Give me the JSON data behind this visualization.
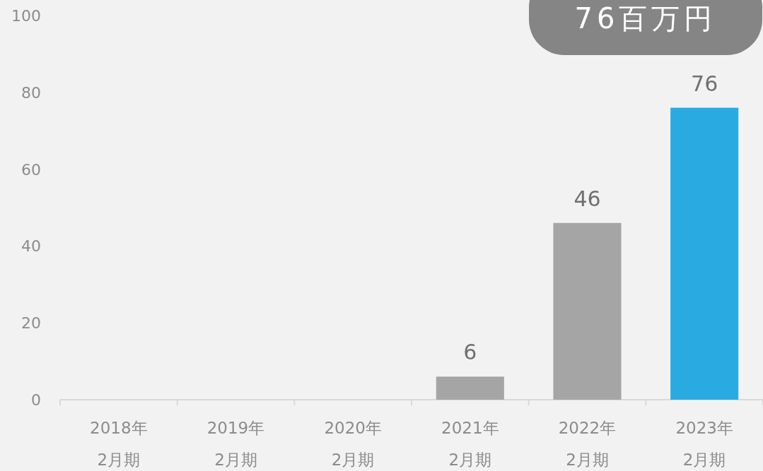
{
  "chart_data": {
    "type": "bar",
    "categories": [
      "2018年\n2月期",
      "2019年\n2月期",
      "2020年\n2月期",
      "2021年\n2月期",
      "2022年\n2月期",
      "2023年\n2月期"
    ],
    "values": [
      null,
      null,
      null,
      6,
      46,
      76
    ],
    "colors": [
      null,
      null,
      null,
      "#a5a5a5",
      "#a5a5a5",
      "#29abe2"
    ],
    "value_labels": [
      null,
      null,
      null,
      "6",
      "46",
      "76"
    ],
    "ylim": [
      0,
      100
    ],
    "yticks": [
      0,
      20,
      40,
      60,
      80,
      100
    ],
    "grid": false,
    "annotations": [
      "76百万円"
    ]
  }
}
